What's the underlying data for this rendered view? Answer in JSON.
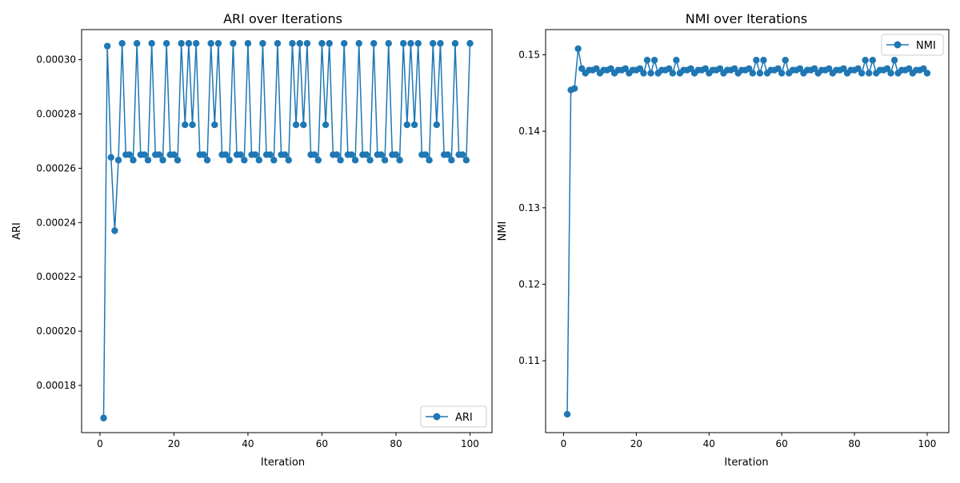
{
  "chart_data": [
    {
      "type": "line",
      "title": "ARI over Iterations",
      "xlabel": "Iteration",
      "ylabel": "ARI",
      "xlim": [
        -4.95,
        105.95
      ],
      "ylim": [
        0.00016262,
        0.00031108
      ],
      "xticks": [
        0,
        20,
        40,
        60,
        80,
        100
      ],
      "xtick_labels": [
        "0",
        "20",
        "40",
        "60",
        "80",
        "100"
      ],
      "yticks": [
        0.00018,
        0.0002,
        0.00022,
        0.00024,
        0.00026,
        0.00028,
        0.0003
      ],
      "ytick_labels": [
        "0.00018",
        "0.00020",
        "0.00022",
        "0.00024",
        "0.00026",
        "0.00028",
        "0.00030"
      ],
      "legend_position": "lower-right",
      "grid": false,
      "color": "#1f77b4",
      "series": [
        {
          "name": "ARI",
          "x": [
            1,
            2,
            3,
            4,
            5,
            6,
            7,
            8,
            9,
            10,
            11,
            12,
            13,
            14,
            15,
            16,
            17,
            18,
            19,
            20,
            21,
            22,
            23,
            24,
            25,
            26,
            27,
            28,
            29,
            30,
            31,
            32,
            33,
            34,
            35,
            36,
            37,
            38,
            39,
            40,
            41,
            42,
            43,
            44,
            45,
            46,
            47,
            48,
            49,
            50,
            51,
            52,
            53,
            54,
            55,
            56,
            57,
            58,
            59,
            60,
            61,
            62,
            63,
            64,
            65,
            66,
            67,
            68,
            69,
            70,
            71,
            72,
            73,
            74,
            75,
            76,
            77,
            78,
            79,
            80,
            81,
            82,
            83,
            84,
            85,
            86,
            87,
            88,
            89,
            90,
            91,
            92,
            93,
            94,
            95,
            96,
            97,
            98,
            99,
            100
          ],
          "y": [
            0.000168,
            0.000305,
            0.000264,
            0.000237,
            0.000263,
            0.000306,
            0.000265,
            0.000265,
            0.000263,
            0.000306,
            0.000265,
            0.000265,
            0.000263,
            0.000306,
            0.000265,
            0.000265,
            0.000263,
            0.000306,
            0.000265,
            0.000265,
            0.000263,
            0.000306,
            0.000276,
            0.000306,
            0.000276,
            0.000306,
            0.000265,
            0.000265,
            0.000263,
            0.000306,
            0.000276,
            0.000306,
            0.000265,
            0.000265,
            0.000263,
            0.000306,
            0.000265,
            0.000265,
            0.000263,
            0.000306,
            0.000265,
            0.000265,
            0.000263,
            0.000306,
            0.000265,
            0.000265,
            0.000263,
            0.000306,
            0.000265,
            0.000265,
            0.000263,
            0.000306,
            0.000276,
            0.000306,
            0.000276,
            0.000306,
            0.000265,
            0.000265,
            0.000263,
            0.000306,
            0.000276,
            0.000306,
            0.000265,
            0.000265,
            0.000263,
            0.000306,
            0.000265,
            0.000265,
            0.000263,
            0.000306,
            0.000265,
            0.000265,
            0.000263,
            0.000306,
            0.000265,
            0.000265,
            0.000263,
            0.000306,
            0.000265,
            0.000265,
            0.000263,
            0.000306,
            0.000276,
            0.000306,
            0.000276,
            0.000306,
            0.000265,
            0.000265,
            0.000263,
            0.000306,
            0.000276,
            0.000306,
            0.000265,
            0.000265,
            0.000263,
            0.000306,
            0.000265,
            0.000265,
            0.000263,
            0.000306
          ]
        }
      ]
    },
    {
      "type": "line",
      "title": "NMI over Iterations",
      "xlabel": "Iteration",
      "ylabel": "NMI",
      "xlim": [
        -4.95,
        105.95
      ],
      "ylim": [
        0.1006,
        0.1533
      ],
      "xticks": [
        0,
        20,
        40,
        60,
        80,
        100
      ],
      "xtick_labels": [
        "0",
        "20",
        "40",
        "60",
        "80",
        "100"
      ],
      "yticks": [
        0.11,
        0.12,
        0.13,
        0.14,
        0.15
      ],
      "ytick_labels": [
        "0.11",
        "0.12",
        "0.13",
        "0.14",
        "0.15"
      ],
      "legend_position": "upper-right",
      "grid": false,
      "color": "#1f77b4",
      "series": [
        {
          "name": "NMI",
          "x": [
            1,
            2,
            3,
            4,
            5,
            6,
            7,
            8,
            9,
            10,
            11,
            12,
            13,
            14,
            15,
            16,
            17,
            18,
            19,
            20,
            21,
            22,
            23,
            24,
            25,
            26,
            27,
            28,
            29,
            30,
            31,
            32,
            33,
            34,
            35,
            36,
            37,
            38,
            39,
            40,
            41,
            42,
            43,
            44,
            45,
            46,
            47,
            48,
            49,
            50,
            51,
            52,
            53,
            54,
            55,
            56,
            57,
            58,
            59,
            60,
            61,
            62,
            63,
            64,
            65,
            66,
            67,
            68,
            69,
            70,
            71,
            72,
            73,
            74,
            75,
            76,
            77,
            78,
            79,
            80,
            81,
            82,
            83,
            84,
            85,
            86,
            87,
            88,
            89,
            90,
            91,
            92,
            93,
            94,
            95,
            96,
            97,
            98,
            99,
            100
          ],
          "y": [
            0.103,
            0.1454,
            0.1456,
            0.1508,
            0.1482,
            0.1476,
            0.148,
            0.148,
            0.1482,
            0.1476,
            0.148,
            0.148,
            0.1482,
            0.1476,
            0.148,
            0.148,
            0.1482,
            0.1476,
            0.148,
            0.148,
            0.1482,
            0.1476,
            0.1493,
            0.1476,
            0.1493,
            0.1476,
            0.148,
            0.148,
            0.1482,
            0.1476,
            0.1493,
            0.1476,
            0.148,
            0.148,
            0.1482,
            0.1476,
            0.148,
            0.148,
            0.1482,
            0.1476,
            0.148,
            0.148,
            0.1482,
            0.1476,
            0.148,
            0.148,
            0.1482,
            0.1476,
            0.148,
            0.148,
            0.1482,
            0.1476,
            0.1493,
            0.1476,
            0.1493,
            0.1476,
            0.148,
            0.148,
            0.1482,
            0.1476,
            0.1493,
            0.1476,
            0.148,
            0.148,
            0.1482,
            0.1476,
            0.148,
            0.148,
            0.1482,
            0.1476,
            0.148,
            0.148,
            0.1482,
            0.1476,
            0.148,
            0.148,
            0.1482,
            0.1476,
            0.148,
            0.148,
            0.1482,
            0.1476,
            0.1493,
            0.1476,
            0.1493,
            0.1476,
            0.148,
            0.148,
            0.1482,
            0.1476,
            0.1493,
            0.1476,
            0.148,
            0.148,
            0.1482,
            0.1476,
            0.148,
            0.148,
            0.1482,
            0.1476
          ]
        }
      ]
    }
  ]
}
